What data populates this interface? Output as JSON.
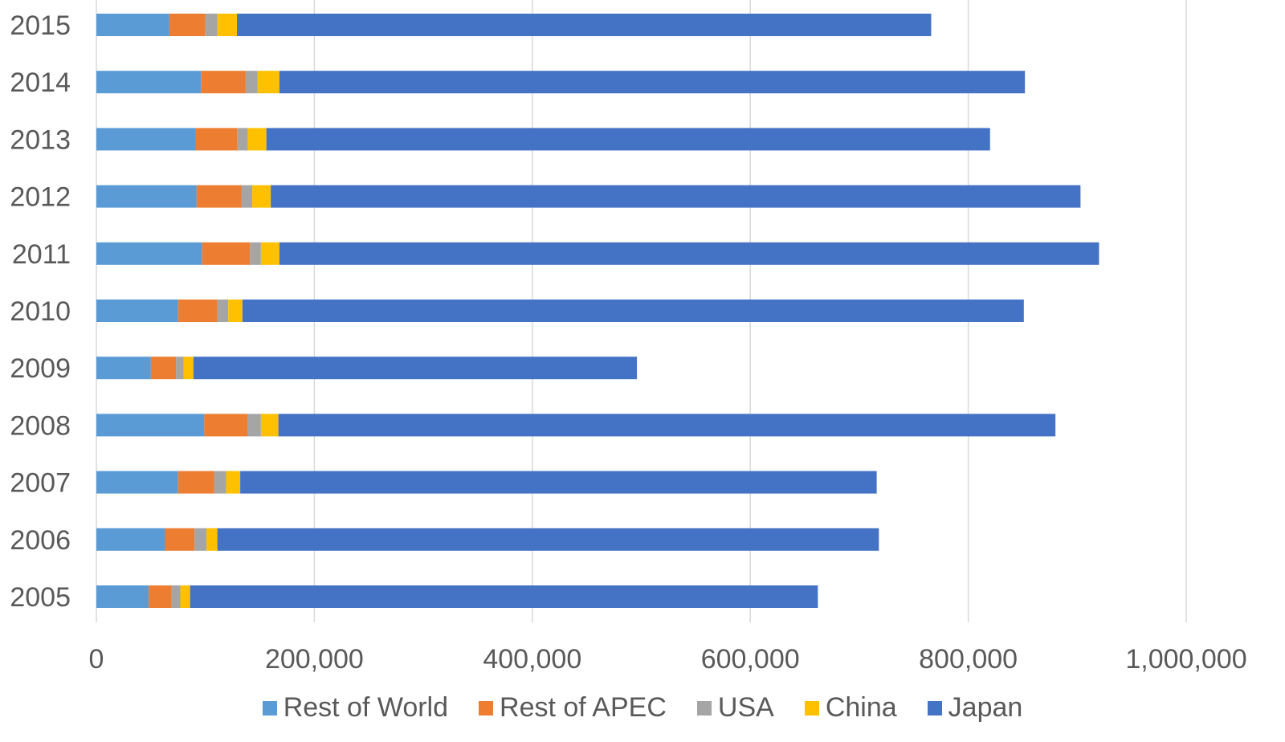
{
  "chart_data": {
    "type": "bar",
    "orientation": "horizontal",
    "stacked": true,
    "categories": [
      "2015",
      "2014",
      "2013",
      "2012",
      "2011",
      "2010",
      "2009",
      "2008",
      "2007",
      "2006",
      "2005"
    ],
    "series": [
      {
        "name": "Rest of World",
        "color": "#5B9BD5",
        "values": [
          67000,
          96000,
          91000,
          92000,
          97000,
          75000,
          50000,
          99000,
          75000,
          63000,
          48000
        ]
      },
      {
        "name": "Rest of APEC",
        "color": "#ED7D31",
        "values": [
          33000,
          41000,
          38000,
          41000,
          44000,
          36000,
          23000,
          40000,
          33000,
          27000,
          21000
        ]
      },
      {
        "name": "USA",
        "color": "#A5A5A5",
        "values": [
          11000,
          11000,
          10000,
          10000,
          10000,
          10000,
          7000,
          12000,
          11000,
          11000,
          8000
        ]
      },
      {
        "name": "China",
        "color": "#FFC000",
        "values": [
          18000,
          20000,
          17000,
          17000,
          17000,
          13000,
          9000,
          16000,
          13000,
          10000,
          9000
        ]
      },
      {
        "name": "Japan",
        "color": "#4472C4",
        "values": [
          637000,
          684000,
          664000,
          743000,
          752000,
          717000,
          407000,
          713000,
          584000,
          607000,
          576000
        ]
      }
    ],
    "xlim": [
      0,
      1000000
    ],
    "xticks": [
      "0",
      "200,000",
      "400,000",
      "600,000",
      "800,000",
      "1,000,000"
    ],
    "grid": "vertical",
    "legend_position": "bottom",
    "title": "",
    "xlabel": "",
    "ylabel": ""
  }
}
